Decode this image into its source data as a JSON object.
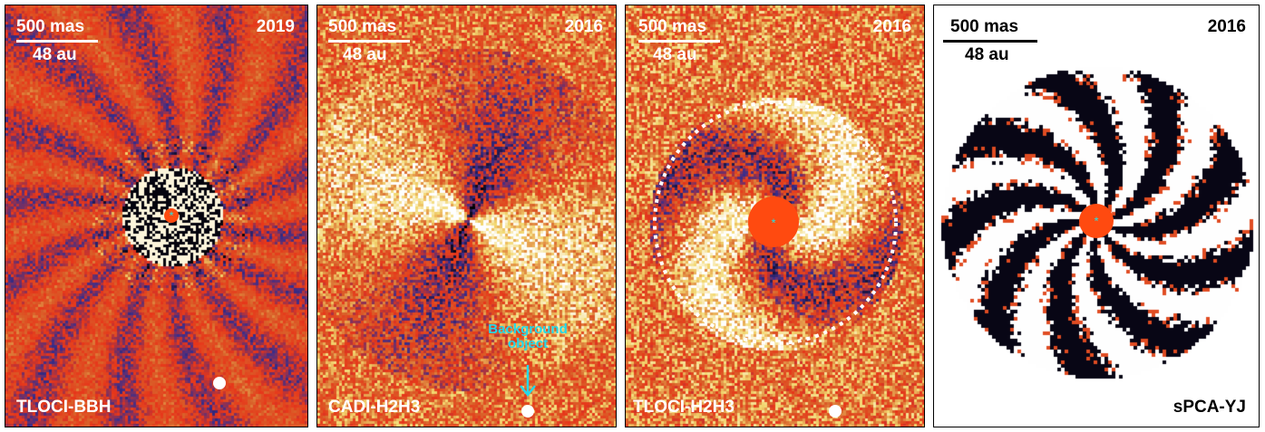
{
  "colors": {
    "red": "#e8361a",
    "orange": "#d9622a",
    "yellow": "#f3d870",
    "white": "#ffffff",
    "blue": "#3a2e8c",
    "black": "#000000",
    "mask": "#ff4a10",
    "cyan": "#1ee3e6"
  },
  "panels": [
    {
      "scale_mas": "500 mas",
      "scale_au": "48 au",
      "year": "2019",
      "method": "TLOCI-BBH"
    },
    {
      "scale_mas": "500 mas",
      "scale_au": "48 au",
      "year": "2016",
      "method": "CADI-H2H3",
      "annotation": "Background object"
    },
    {
      "scale_mas": "500 mas",
      "scale_au": "48 au",
      "year": "2016",
      "method": "TLOCI-H2H3"
    },
    {
      "scale_mas": "500 mas",
      "scale_au": "48 au",
      "year": "2016",
      "method": "sPCA-YJ"
    }
  ],
  "icons": {
    "star": "star-icon",
    "arrow": "arrow-down-icon"
  }
}
